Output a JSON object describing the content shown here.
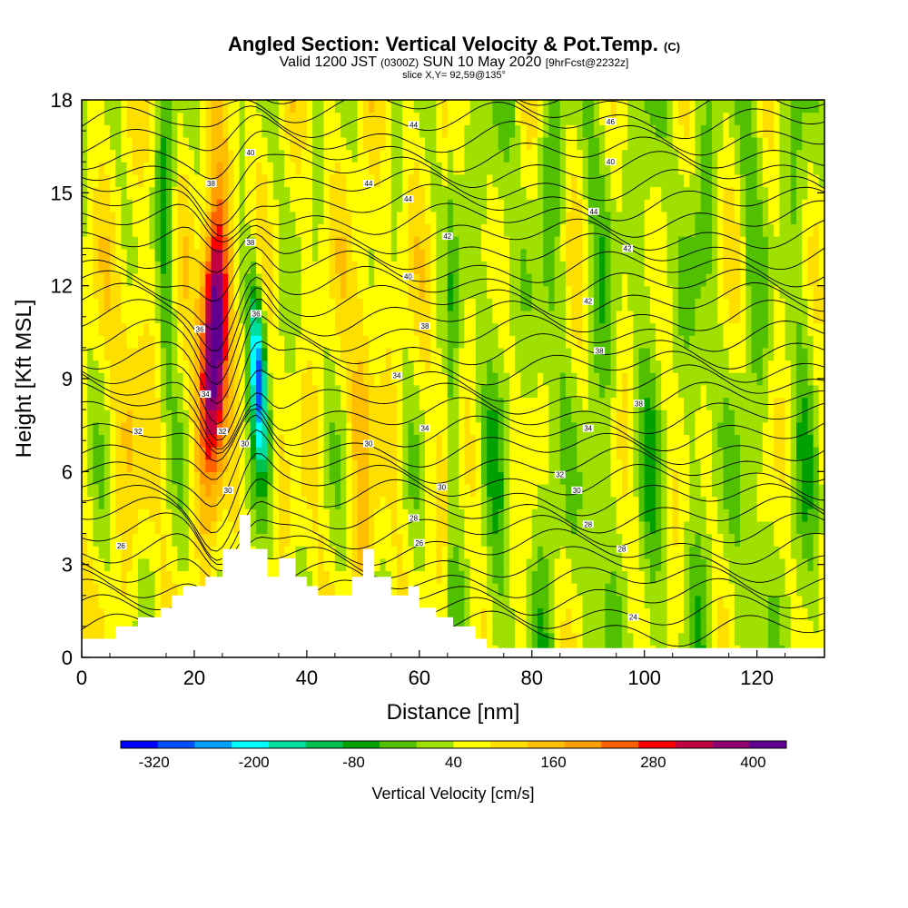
{
  "title": {
    "main": "Angled Section: Vertical Velocity & Pot.Temp.",
    "copyright": "(C)",
    "valid_prefix": "Valid 1200 JST",
    "utc": "(0300Z)",
    "valid_date": "SUN 10 May 2020",
    "forecast": "[9hrFcst@2232z]",
    "slice": "slice X,Y= 92,59@135°"
  },
  "chart_data": {
    "type": "heatmap",
    "xlabel": "Distance [nm]",
    "ylabel": "Height [Kft MSL]",
    "xlim": [
      0,
      132
    ],
    "ylim": [
      0,
      18
    ],
    "x_ticks": [
      "0",
      "20",
      "40",
      "60",
      "80",
      "100",
      "120"
    ],
    "x_tick_values": [
      0,
      20,
      40,
      60,
      80,
      100,
      120
    ],
    "y_ticks": [
      "0",
      "3",
      "6",
      "9",
      "12",
      "15",
      "18"
    ],
    "y_tick_values": [
      0,
      3,
      6,
      9,
      12,
      15,
      18
    ],
    "colorbar": {
      "title": "Vertical Velocity [cm/s]",
      "labels": [
        "-320",
        "-200",
        "-80",
        "40",
        "160",
        "280",
        "400"
      ],
      "label_values": [
        -320,
        -200,
        -80,
        40,
        160,
        280,
        400
      ],
      "range": [
        -360,
        440
      ],
      "colors": [
        "#0000ff",
        "#0050ff",
        "#00a0ff",
        "#00ffff",
        "#00dfa0",
        "#00c050",
        "#00a000",
        "#50c000",
        "#a0e000",
        "#ffff00",
        "#ffdf00",
        "#ffbf00",
        "#ff9f00",
        "#ff6000",
        "#ff0000",
        "#c00040",
        "#900070",
        "#600090"
      ]
    },
    "terrain_profile": [
      [
        0,
        0.6
      ],
      [
        6,
        0.6
      ],
      [
        6,
        1
      ],
      [
        10,
        1
      ],
      [
        10,
        1.3
      ],
      [
        14,
        1.3
      ],
      [
        14,
        1.6
      ],
      [
        16,
        1.6
      ],
      [
        16,
        2
      ],
      [
        18,
        2
      ],
      [
        18,
        2.3
      ],
      [
        22,
        2.3
      ],
      [
        22,
        2.6
      ],
      [
        25,
        2.6
      ],
      [
        25,
        3.5
      ],
      [
        28,
        3.5
      ],
      [
        28,
        4.6
      ],
      [
        30,
        4.6
      ],
      [
        30,
        3.5
      ],
      [
        33,
        3.5
      ],
      [
        33,
        2.6
      ],
      [
        35,
        2.6
      ],
      [
        35,
        3.2
      ],
      [
        38,
        3.2
      ],
      [
        38,
        2.6
      ],
      [
        40,
        2.6
      ],
      [
        40,
        2.3
      ],
      [
        42,
        2.3
      ],
      [
        42,
        2
      ],
      [
        48,
        2
      ],
      [
        48,
        2.6
      ],
      [
        50,
        2.6
      ],
      [
        50,
        3.5
      ],
      [
        52,
        3.5
      ],
      [
        52,
        2.6
      ],
      [
        55,
        2.6
      ],
      [
        55,
        2
      ],
      [
        58,
        2
      ],
      [
        58,
        2.3
      ],
      [
        60,
        2.3
      ],
      [
        60,
        1.6
      ],
      [
        63,
        1.6
      ],
      [
        63,
        1.3
      ],
      [
        66,
        1.3
      ],
      [
        66,
        1
      ],
      [
        70,
        1
      ],
      [
        70,
        0.6
      ],
      [
        72,
        0.6
      ],
      [
        72,
        0.3
      ],
      [
        132,
        0.3
      ]
    ],
    "features": [
      {
        "name": "updraft",
        "x_center": 23.5,
        "y_center": 10.5,
        "peak": 440
      },
      {
        "name": "downdraft",
        "x_center": 31.5,
        "y_center": 9.3,
        "peak": -330
      }
    ],
    "isentrope_labels": [
      {
        "text": "44",
        "x": 59,
        "y": 17.2
      },
      {
        "text": "46",
        "x": 94,
        "y": 17.3
      },
      {
        "text": "40",
        "x": 30,
        "y": 16.3
      },
      {
        "text": "40",
        "x": 94,
        "y": 16.0
      },
      {
        "text": "44",
        "x": 51,
        "y": 15.3
      },
      {
        "text": "44",
        "x": 58,
        "y": 14.8
      },
      {
        "text": "44",
        "x": 91,
        "y": 14.4
      },
      {
        "text": "38",
        "x": 23,
        "y": 15.3
      },
      {
        "text": "42",
        "x": 65,
        "y": 13.6
      },
      {
        "text": "42",
        "x": 97,
        "y": 13.2
      },
      {
        "text": "38",
        "x": 30,
        "y": 13.4
      },
      {
        "text": "40",
        "x": 58,
        "y": 12.3
      },
      {
        "text": "42",
        "x": 90,
        "y": 11.5
      },
      {
        "text": "36",
        "x": 31,
        "y": 11.1
      },
      {
        "text": "38",
        "x": 61,
        "y": 10.7
      },
      {
        "text": "36",
        "x": 21,
        "y": 10.6
      },
      {
        "text": "38",
        "x": 92,
        "y": 9.9
      },
      {
        "text": "34",
        "x": 56,
        "y": 9.1
      },
      {
        "text": "38",
        "x": 99,
        "y": 8.2
      },
      {
        "text": "34",
        "x": 22,
        "y": 8.5
      },
      {
        "text": "34",
        "x": 61,
        "y": 7.4
      },
      {
        "text": "34",
        "x": 90,
        "y": 7.4
      },
      {
        "text": "32",
        "x": 10,
        "y": 7.3
      },
      {
        "text": "32",
        "x": 25,
        "y": 7.3
      },
      {
        "text": "30",
        "x": 29,
        "y": 6.9
      },
      {
        "text": "30",
        "x": 51,
        "y": 6.9
      },
      {
        "text": "32",
        "x": 85,
        "y": 5.9
      },
      {
        "text": "30",
        "x": 64,
        "y": 5.5
      },
      {
        "text": "30",
        "x": 88,
        "y": 5.4
      },
      {
        "text": "30",
        "x": 26,
        "y": 5.4
      },
      {
        "text": "28",
        "x": 59,
        "y": 4.5
      },
      {
        "text": "28",
        "x": 90,
        "y": 4.3
      },
      {
        "text": "26",
        "x": 60,
        "y": 3.7
      },
      {
        "text": "28",
        "x": 96,
        "y": 3.5
      },
      {
        "text": "26",
        "x": 7,
        "y": 3.6
      },
      {
        "text": "24",
        "x": 98,
        "y": 1.3
      }
    ]
  }
}
